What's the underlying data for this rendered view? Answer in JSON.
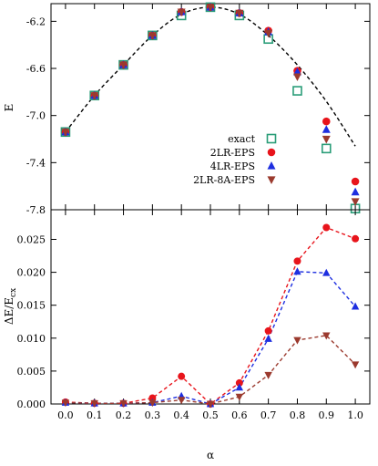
{
  "chart_data": [
    {
      "type": "scatter",
      "xlabel": "",
      "ylabel": "E",
      "xlim": [
        -0.05,
        1.05
      ],
      "ylim": [
        -7.8,
        -6.05
      ],
      "yticks": [
        "-6.2",
        "-6.6",
        "-7.0",
        "-7.4",
        "-7.8"
      ],
      "ytick_values": [
        -6.2,
        -6.6,
        -7.0,
        -7.4,
        -7.8
      ],
      "xticks": [
        0.0,
        0.1,
        0.2,
        0.3,
        0.4,
        0.5,
        0.6,
        0.7,
        0.8,
        0.9,
        1.0
      ],
      "grid": false,
      "legend_position": "bottom-right",
      "curve": {
        "style": "dashed",
        "color": "#000000",
        "x": [
          0.0,
          0.1,
          0.2,
          0.3,
          0.4,
          0.5,
          0.6,
          0.7,
          0.8,
          0.9,
          1.0
        ],
        "y": [
          -7.14,
          -6.83,
          -6.57,
          -6.32,
          -6.14,
          -6.08,
          -6.14,
          -6.32,
          -6.57,
          -6.88,
          -7.26
        ]
      },
      "series": [
        {
          "name": "exact",
          "marker": "open-square",
          "color": "#2a9d78",
          "x": [
            0.0,
            0.1,
            0.2,
            0.3,
            0.4,
            0.5,
            0.6,
            0.7,
            0.8,
            0.9,
            1.0
          ],
          "y": [
            -7.14,
            -6.83,
            -6.57,
            -6.32,
            -6.15,
            -6.08,
            -6.15,
            -6.35,
            -6.79,
            -7.28,
            -7.79
          ]
        },
        {
          "name": "2LR-EPS",
          "marker": "circle",
          "color": "#e8141b",
          "x": [
            0.0,
            0.1,
            0.2,
            0.3,
            0.4,
            0.5,
            0.6,
            0.7,
            0.8,
            0.9,
            1.0
          ],
          "y": [
            -7.14,
            -6.83,
            -6.57,
            -6.32,
            -6.12,
            -6.08,
            -6.13,
            -6.28,
            -6.62,
            -7.05,
            -7.56
          ]
        },
        {
          "name": "4LR-EPS",
          "marker": "triangle-up",
          "color": "#1d2ee0",
          "x": [
            0.0,
            0.1,
            0.2,
            0.3,
            0.4,
            0.5,
            0.6,
            0.7,
            0.8,
            0.9,
            1.0
          ],
          "y": [
            -7.14,
            -6.83,
            -6.57,
            -6.32,
            -6.12,
            -6.08,
            -6.13,
            -6.29,
            -6.63,
            -7.12,
            -7.65
          ]
        },
        {
          "name": "2LR-8A-EPS",
          "marker": "triangle-down",
          "color": "#9b3a2e",
          "x": [
            0.0,
            0.1,
            0.2,
            0.3,
            0.4,
            0.5,
            0.6,
            0.7,
            0.8,
            0.9,
            1.0
          ],
          "y": [
            -7.14,
            -6.83,
            -6.57,
            -6.32,
            -6.12,
            -6.08,
            -6.13,
            -6.3,
            -6.67,
            -7.2,
            -7.73
          ]
        }
      ]
    },
    {
      "type": "line",
      "xlabel": "α",
      "ylabel": "ΔE/Ecx",
      "ylabel_main": "ΔE/E",
      "ylabel_sub": "cx",
      "xlim": [
        -0.05,
        1.05
      ],
      "ylim": [
        0.0,
        0.0295
      ],
      "yticks": [
        "0.000",
        "0.005",
        "0.010",
        "0.015",
        "0.020",
        "0.025"
      ],
      "ytick_values": [
        0.0,
        0.005,
        0.01,
        0.015,
        0.02,
        0.025
      ],
      "xticks": [
        "0.0",
        "0.1",
        "0.2",
        "0.3",
        "0.4",
        "0.5",
        "0.6",
        "0.7",
        "0.8",
        "0.9",
        "1.0"
      ],
      "xtick_values": [
        0.0,
        0.1,
        0.2,
        0.3,
        0.4,
        0.5,
        0.6,
        0.7,
        0.8,
        0.9,
        1.0
      ],
      "grid": false,
      "series": [
        {
          "name": "2LR-EPS",
          "marker": "circle",
          "color": "#e8141b",
          "x": [
            0.0,
            0.1,
            0.2,
            0.3,
            0.4,
            0.5,
            0.6,
            0.7,
            0.8,
            0.9,
            1.0
          ],
          "y": [
            0.0003,
            0.0001,
            0.0001,
            0.0009,
            0.0042,
            0.0,
            0.0032,
            0.0111,
            0.0217,
            0.0268,
            0.0251
          ]
        },
        {
          "name": "4LR-EPS",
          "marker": "triangle-up",
          "color": "#1d2ee0",
          "x": [
            0.0,
            0.1,
            0.2,
            0.3,
            0.4,
            0.5,
            0.6,
            0.7,
            0.8,
            0.9,
            1.0
          ],
          "y": [
            0.0002,
            0.0001,
            0.0001,
            0.0002,
            0.0012,
            0.0,
            0.0025,
            0.0099,
            0.0201,
            0.0199,
            0.0148
          ]
        },
        {
          "name": "2LR-8A-EPS",
          "marker": "triangle-down",
          "color": "#9b3a2e",
          "x": [
            0.0,
            0.1,
            0.2,
            0.3,
            0.4,
            0.5,
            0.6,
            0.7,
            0.8,
            0.9,
            1.0
          ],
          "y": [
            0.0002,
            0.0001,
            0.0001,
            0.0002,
            0.0006,
            0.0,
            0.0011,
            0.0044,
            0.0097,
            0.0104,
            0.006
          ]
        }
      ]
    }
  ]
}
